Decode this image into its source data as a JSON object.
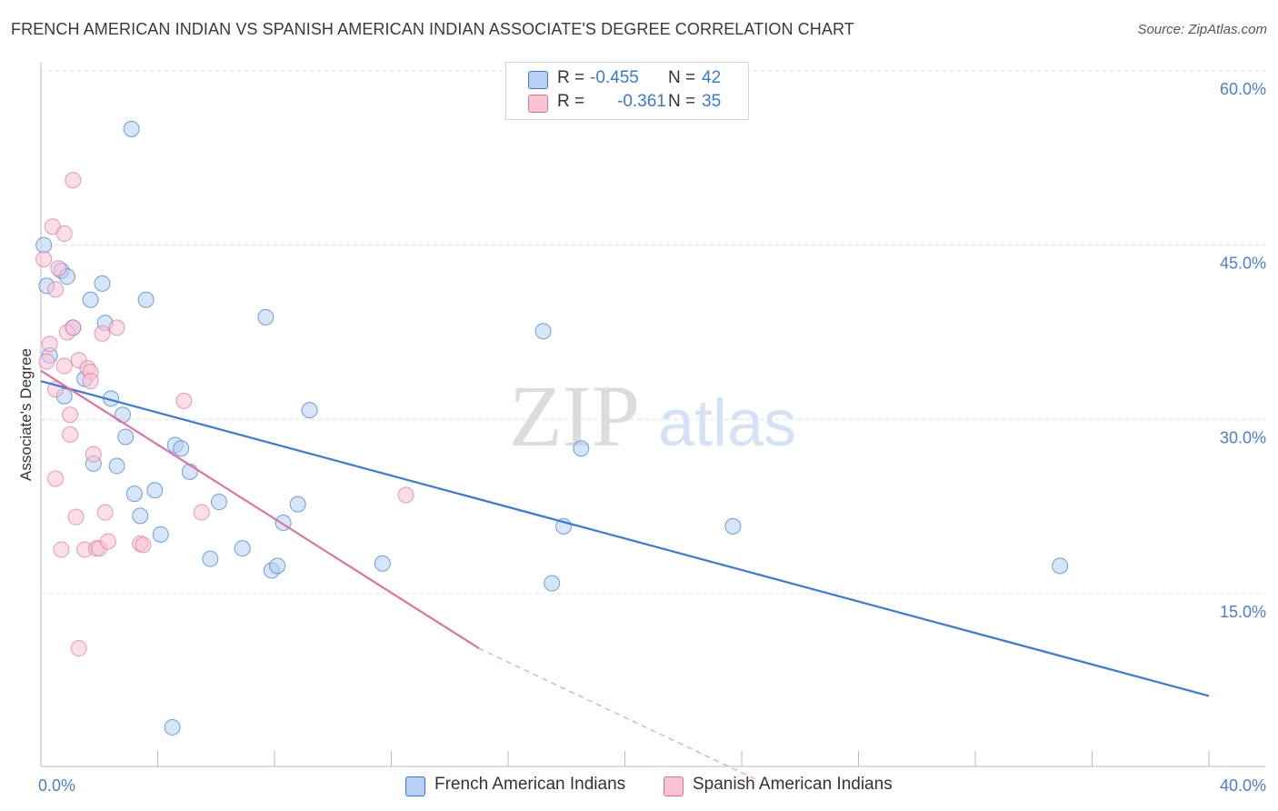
{
  "title": "FRENCH AMERICAN INDIAN VS SPANISH AMERICAN INDIAN ASSOCIATE'S DEGREE CORRELATION CHART",
  "source": "Source: ZipAtlas.com",
  "watermark": {
    "zip": "ZIP",
    "atlas": "atlas"
  },
  "legend": {
    "r_label": "R =",
    "n_label": "N =",
    "rows": [
      {
        "r": "-0.455",
        "n": "42"
      },
      {
        "r": "-0.361",
        "n": "35"
      }
    ]
  },
  "chart_data": {
    "type": "scatter",
    "title": "FRENCH AMERICAN INDIAN VS SPANISH AMERICAN INDIAN ASSOCIATE'S DEGREE CORRELATION CHART",
    "xlabel": "",
    "ylabel": "Associate's Degree",
    "xlim": [
      0,
      40
    ],
    "ylim": [
      0,
      63
    ],
    "x_tick_labels": [
      "0.0%",
      "40.0%"
    ],
    "y_ticks": [
      15,
      30,
      45,
      60
    ],
    "y_tick_labels": [
      "15.0%",
      "30.0%",
      "45.0%",
      "60.0%"
    ],
    "grid": true,
    "legend_position": "top-center",
    "colors": {
      "blue": "#3b78d8",
      "blue_fill": "#b7cff2",
      "pink": "#e0719e",
      "pink_fill": "#f8c3d4"
    },
    "series": [
      {
        "name": "French American Indians",
        "color": "#3b78d8",
        "fill": "#b7cff2",
        "r": -0.455,
        "n": 42,
        "trend": {
          "x": [
            0,
            40
          ],
          "y": [
            33.3,
            6.2
          ],
          "dashed_to": null
        },
        "points": [
          [
            0.1,
            45.0
          ],
          [
            0.2,
            41.5
          ],
          [
            0.3,
            35.5
          ],
          [
            0.7,
            42.8
          ],
          [
            0.8,
            32.0
          ],
          [
            0.9,
            42.3
          ],
          [
            1.1,
            37.9
          ],
          [
            1.5,
            33.5
          ],
          [
            1.7,
            40.3
          ],
          [
            1.8,
            26.2
          ],
          [
            2.1,
            41.7
          ],
          [
            2.2,
            38.3
          ],
          [
            2.4,
            31.8
          ],
          [
            2.6,
            26.0
          ],
          [
            2.8,
            30.4
          ],
          [
            2.9,
            28.5
          ],
          [
            3.1,
            55.0
          ],
          [
            3.2,
            23.6
          ],
          [
            3.4,
            21.7
          ],
          [
            3.6,
            40.3
          ],
          [
            3.9,
            23.9
          ],
          [
            4.1,
            20.1
          ],
          [
            4.6,
            27.8
          ],
          [
            4.8,
            27.5
          ],
          [
            5.1,
            25.5
          ],
          [
            5.8,
            18.0
          ],
          [
            6.1,
            22.9
          ],
          [
            6.9,
            18.9
          ],
          [
            7.7,
            38.8
          ],
          [
            7.9,
            17.0
          ],
          [
            8.1,
            17.4
          ],
          [
            8.3,
            21.1
          ],
          [
            8.8,
            22.7
          ],
          [
            9.2,
            30.8
          ],
          [
            11.7,
            17.6
          ],
          [
            17.5,
            15.9
          ],
          [
            17.2,
            37.6
          ],
          [
            17.9,
            20.8
          ],
          [
            18.5,
            27.5
          ],
          [
            23.7,
            20.8
          ],
          [
            34.9,
            17.4
          ],
          [
            4.5,
            3.5
          ]
        ]
      },
      {
        "name": "Spanish American Indians",
        "color": "#e0719e",
        "fill": "#f8c3d4",
        "r": -0.361,
        "n": 35,
        "trend": {
          "x": [
            0,
            15
          ],
          "y": [
            34.2,
            10.3
          ],
          "dashed_to": [
            24.5,
            -1.0
          ]
        },
        "points": [
          [
            0.1,
            43.8
          ],
          [
            0.2,
            35.0
          ],
          [
            0.3,
            36.5
          ],
          [
            0.4,
            46.6
          ],
          [
            0.5,
            41.2
          ],
          [
            0.6,
            43.0
          ],
          [
            0.5,
            32.6
          ],
          [
            0.5,
            24.9
          ],
          [
            0.7,
            18.8
          ],
          [
            0.8,
            34.6
          ],
          [
            0.8,
            46.0
          ],
          [
            0.9,
            37.5
          ],
          [
            1.0,
            30.4
          ],
          [
            1.0,
            28.7
          ],
          [
            1.1,
            37.9
          ],
          [
            1.1,
            50.6
          ],
          [
            1.2,
            21.6
          ],
          [
            1.3,
            35.1
          ],
          [
            1.3,
            10.3
          ],
          [
            1.5,
            18.8
          ],
          [
            1.6,
            34.4
          ],
          [
            1.7,
            34.1
          ],
          [
            1.7,
            33.3
          ],
          [
            1.8,
            27.0
          ],
          [
            1.9,
            18.9
          ],
          [
            2.0,
            18.9
          ],
          [
            2.1,
            37.4
          ],
          [
            2.2,
            22.0
          ],
          [
            2.3,
            19.5
          ],
          [
            2.6,
            37.9
          ],
          [
            3.4,
            19.3
          ],
          [
            3.5,
            19.2
          ],
          [
            4.9,
            31.6
          ],
          [
            5.5,
            22.0
          ],
          [
            12.5,
            23.5
          ]
        ]
      }
    ]
  }
}
